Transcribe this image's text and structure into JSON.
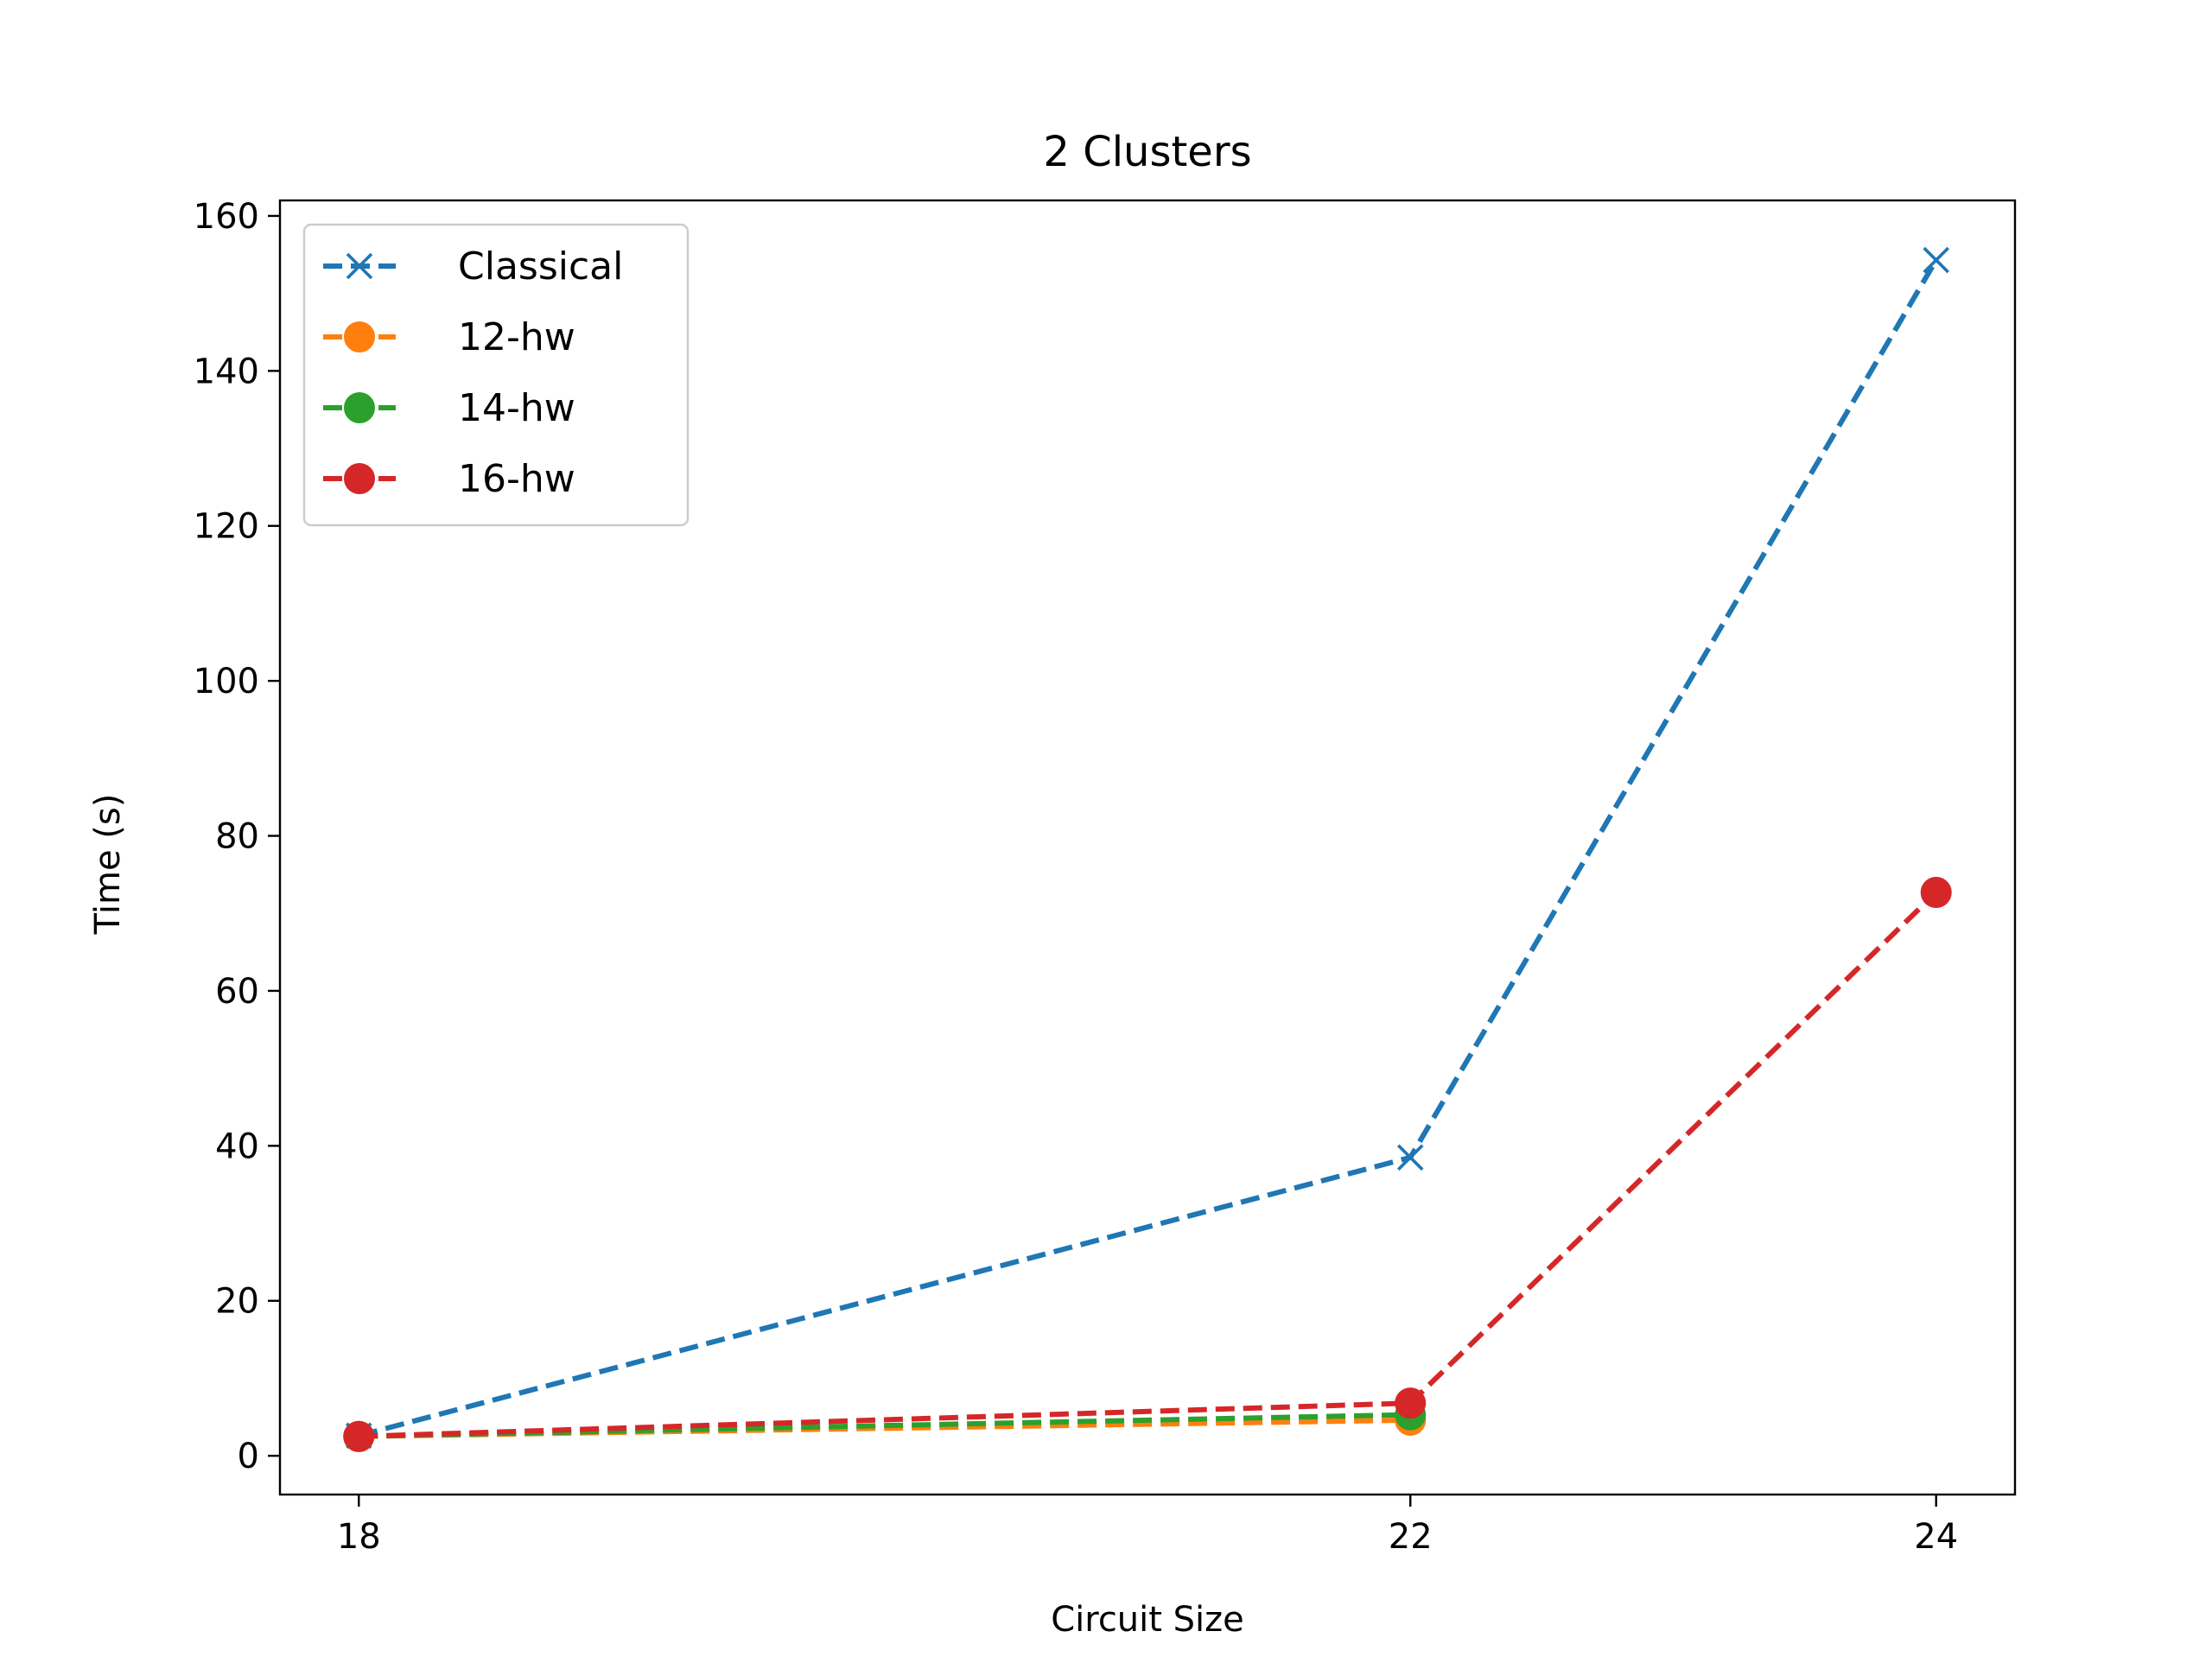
{
  "chart_data": {
    "type": "line",
    "title": "2 Clusters",
    "xlabel": "Circuit Size",
    "ylabel": "Time (s)",
    "x": [
      18,
      22,
      24
    ],
    "xticks": [
      18,
      22,
      24
    ],
    "xlim": [
      17.7,
      24.3
    ],
    "yticks": [
      0,
      20,
      40,
      60,
      80,
      100,
      120,
      140,
      160
    ],
    "ylim": [
      -5,
      162
    ],
    "grid": false,
    "legend_position": "upper-left",
    "series": [
      {
        "name": "Classical",
        "values": [
          2.6,
          38.5,
          154.3
        ],
        "color": "#1f77b4",
        "marker": "x",
        "linestyle": "dashed"
      },
      {
        "name": "12-hw",
        "values": [
          2.5,
          4.6,
          null
        ],
        "color": "#ff7f0e",
        "marker": "o",
        "linestyle": "dashed"
      },
      {
        "name": "14-hw",
        "values": [
          2.5,
          5.3,
          null
        ],
        "color": "#2ca02c",
        "marker": "o",
        "linestyle": "dashed"
      },
      {
        "name": "16-hw",
        "values": [
          2.5,
          6.8,
          72.7
        ],
        "color": "#d62728",
        "marker": "o",
        "linestyle": "dashed"
      }
    ]
  }
}
